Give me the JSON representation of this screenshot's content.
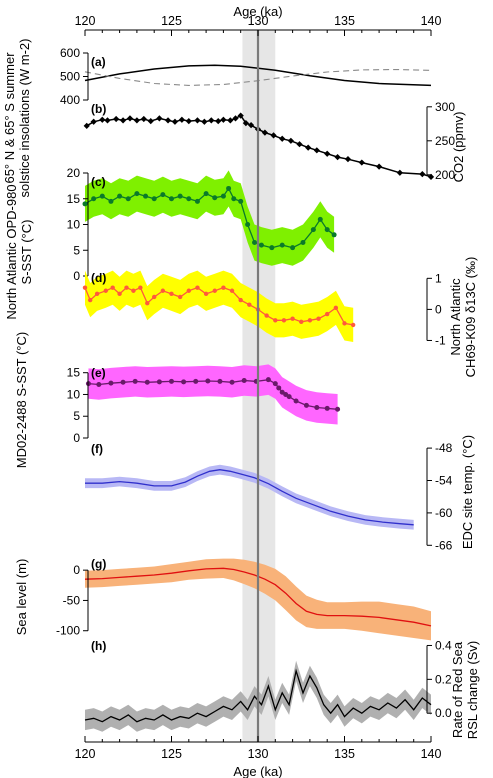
{
  "figure": {
    "x_axis_top_label": "Age (ka)",
    "x_axis_bottom_label": "Age (ka)",
    "shade_band": [
      129.1,
      131.0
    ],
    "vline_age": 130.0
  },
  "chart_data": [
    {
      "panel": "(a)",
      "type": "line",
      "left_ylabel": "65° N & 65° S summer solstice insolations (W m-2)",
      "left_ticks": [
        400,
        500,
        600
      ],
      "ylim": [
        400,
        600
      ],
      "series": [
        {
          "name": "",
          "color": "#000000",
          "dashed": false,
          "x": [
            120,
            122,
            124,
            126,
            127.5,
            129,
            131,
            133,
            135,
            137,
            140
          ],
          "y": [
            483,
            511,
            532,
            545,
            548,
            544,
            527,
            503,
            483,
            470,
            462
          ]
        },
        {
          "name": "",
          "color": "#8a8a8a",
          "dashed": true,
          "x": [
            120,
            122,
            124,
            126,
            128,
            130,
            132,
            134,
            136,
            138,
            140
          ],
          "y": [
            520,
            492,
            470,
            462,
            466,
            482,
            502,
            519,
            528,
            530,
            526
          ]
        }
      ]
    },
    {
      "panel": "(b)",
      "type": "line",
      "right_ylabel": "CO2 (ppmv)",
      "right_ticks": [
        200,
        250,
        300
      ],
      "ylim": [
        185,
        310
      ],
      "series": [
        {
          "name": "",
          "color": "#000000",
          "x": [
            120.1,
            120.5,
            121,
            121.3,
            121.8,
            122.2,
            122.6,
            123,
            123.4,
            123.8,
            124.3,
            124.8,
            125.2,
            125.6,
            126,
            126.5,
            126.9,
            127.3,
            127.7,
            128,
            128.4,
            128.7,
            129.0,
            129.3,
            129.6,
            130.0,
            130.4,
            130.9,
            131.4,
            131.9,
            132.4,
            132.9,
            133.4,
            134,
            134.6,
            135.2,
            136,
            137,
            138.2,
            139.5,
            140
          ],
          "y": [
            272,
            278,
            281,
            280,
            282,
            280,
            283,
            280,
            282,
            279,
            283,
            280,
            278,
            281,
            279,
            280,
            278,
            280,
            279,
            281,
            280,
            283,
            287,
            276,
            273,
            267,
            262,
            258,
            253,
            250,
            245,
            240,
            236,
            231,
            226,
            223,
            218,
            212,
            203,
            201,
            197
          ]
        }
      ]
    },
    {
      "panel": "(c)",
      "type": "area",
      "left_ylabel": "North Atlantic OPD-980 S-SST (°C)",
      "left_ticks": [
        0,
        5,
        10,
        15,
        20
      ],
      "ylim": [
        0,
        20
      ],
      "color": "#0a7a2a",
      "band_color": "#7ff000",
      "x": [
        120,
        120.5,
        121,
        121.5,
        122,
        122.5,
        123,
        123.5,
        124,
        124.5,
        125,
        125.5,
        126,
        126.5,
        127,
        127.5,
        128,
        128.3,
        128.6,
        129.0,
        129.4,
        129.8,
        130.2,
        130.8,
        131.4,
        132.0,
        132.6,
        133.2,
        133.6,
        134.0,
        134.4
      ],
      "y": [
        14,
        15,
        15.5,
        14.5,
        15.5,
        15,
        16,
        15.5,
        15,
        15.8,
        15,
        15.5,
        15,
        14.5,
        16,
        15.2,
        15.5,
        17,
        15,
        14.5,
        10,
        6.5,
        6,
        5.5,
        6,
        5.5,
        6.5,
        9,
        11,
        9,
        8
      ],
      "band_halfwidth": 3.5
    },
    {
      "panel": "(d)",
      "type": "area",
      "right_ylabel": "North Atlantic CH69-K09 δ13C (‰)",
      "right_ticks": [
        -1,
        0,
        1
      ],
      "ylim": [
        -1.5,
        1.3
      ],
      "color": "#ff5a3c",
      "band_color": "#ffff00",
      "x": [
        120,
        120.3,
        120.7,
        121.2,
        121.6,
        122.0,
        122.4,
        122.8,
        123.2,
        123.6,
        124,
        124.5,
        125,
        125.5,
        126,
        126.5,
        127,
        127.5,
        128,
        128.5,
        129,
        129.5,
        130,
        130.5,
        131,
        131.5,
        132,
        132.5,
        133,
        133.5,
        134,
        134.5,
        135,
        135.5
      ],
      "y": [
        0.7,
        0.3,
        0.5,
        0.6,
        0.7,
        0.5,
        0.7,
        0.6,
        0.7,
        0.2,
        0.4,
        0.6,
        0.5,
        0.4,
        0.6,
        0.7,
        0.5,
        0.6,
        0.7,
        0.6,
        0.3,
        0.15,
        0.0,
        -0.2,
        -0.35,
        -0.35,
        -0.3,
        -0.4,
        -0.35,
        -0.3,
        -0.15,
        0.05,
        -0.45,
        -0.5
      ],
      "band_halfwidth": 0.55
    },
    {
      "panel": "(e)",
      "type": "area",
      "left_ylabel": "MD02-2488 S-SST (°C)",
      "left_ticks": [
        0,
        5,
        10,
        15
      ],
      "ylim": [
        0,
        17
      ],
      "color": "#6a1a6a",
      "band_color": "#ff66ff",
      "x": [
        120.2,
        120.8,
        121.5,
        122.2,
        122.9,
        123.6,
        124.3,
        125,
        125.7,
        126.4,
        127.1,
        127.8,
        128.5,
        129.2,
        129.9,
        130.6,
        131.0,
        131.2,
        131.4,
        131.6,
        131.8,
        132.2,
        132.8,
        133.4,
        134,
        134.6
      ],
      "y": [
        12.5,
        12.3,
        12.6,
        12.8,
        13,
        12.8,
        12.9,
        13,
        12.9,
        13,
        13.1,
        13,
        12.8,
        13.2,
        13,
        13.4,
        12.5,
        11.5,
        10.5,
        10,
        9.5,
        8.5,
        7.5,
        7.0,
        6.8,
        6.6
      ],
      "band_halfwidth": 3.5
    },
    {
      "panel": "(f)",
      "type": "area",
      "right_ylabel": "EDC site temp. (°C)",
      "right_ticks": [
        -48,
        -54,
        -60,
        -66
      ],
      "ylim": [
        -66.5,
        -46.5
      ],
      "color": "#3030cc",
      "band_color": "#b8b8f5",
      "x": [
        120,
        121,
        122,
        123,
        124,
        125,
        125.8,
        126.5,
        127.2,
        127.8,
        128.4,
        129,
        129.8,
        130.6,
        131.4,
        132.2,
        133.2,
        134.2,
        135.2,
        136.2,
        137.2,
        138.2,
        139
      ],
      "y": [
        -54.5,
        -54.5,
        -54.2,
        -54.5,
        -55,
        -55,
        -54.3,
        -53.2,
        -52.3,
        -52.0,
        -52.3,
        -52.8,
        -53.5,
        -54.6,
        -56,
        -57.3,
        -58.5,
        -59.7,
        -60.6,
        -61.3,
        -61.7,
        -62,
        -62.2
      ],
      "band_halfwidth": 0.9
    },
    {
      "panel": "(g)",
      "type": "area",
      "left_ylabel": "Sea level (m)",
      "left_ticks": [
        -100,
        -50,
        0
      ],
      "ylim": [
        -112,
        25
      ],
      "color": "#e01010",
      "band_color": "#f8b279",
      "x": [
        120,
        121,
        122,
        123,
        124,
        125,
        126,
        127,
        128,
        128.6,
        129.2,
        129.8,
        130.4,
        131,
        131.6,
        132.2,
        132.8,
        133.4,
        134,
        135,
        136,
        137,
        138,
        139,
        140
      ],
      "y": [
        -15,
        -14,
        -12,
        -10,
        -8,
        -5,
        -1,
        2,
        3,
        1,
        -3,
        -8,
        -15,
        -24,
        -38,
        -55,
        -68,
        -73,
        -75,
        -75,
        -76,
        -78,
        -82,
        -86,
        -92
      ],
      "band_halfwidth": [
        14,
        14,
        14,
        14,
        14,
        15,
        15,
        16,
        16,
        18,
        20,
        22,
        24,
        26,
        28,
        28,
        26,
        24,
        22,
        22,
        24,
        26,
        26,
        26,
        24
      ]
    },
    {
      "panel": "(h)",
      "type": "area",
      "right_ylabel": "Rate of Red Sea RSL change (Sv)",
      "right_ticks": [
        0.0,
        0.2,
        0.4
      ],
      "ylim": [
        -0.17,
        0.45
      ],
      "color": "#000000",
      "band_color": "#b0b0b0",
      "x": [
        120,
        120.5,
        121,
        121.5,
        122,
        122.5,
        123,
        123.5,
        124,
        124.5,
        125,
        125.5,
        126,
        126.5,
        127,
        127.5,
        128,
        128.5,
        129,
        129.4,
        129.8,
        130.2,
        130.6,
        131,
        131.4,
        131.8,
        132.2,
        132.6,
        133,
        133.4,
        133.8,
        134.2,
        134.6,
        135,
        135.5,
        136,
        136.5,
        137,
        137.5,
        138,
        138.5,
        139,
        139.5,
        140
      ],
      "y": [
        -0.04,
        -0.03,
        -0.05,
        -0.02,
        -0.04,
        -0.01,
        -0.05,
        -0.03,
        -0.04,
        -0.01,
        -0.04,
        -0.02,
        -0.03,
        0.0,
        -0.02,
        0.01,
        0.04,
        0.02,
        0.07,
        0.02,
        0.1,
        0.05,
        0.16,
        0.02,
        0.12,
        0.05,
        0.25,
        0.12,
        0.22,
        0.15,
        0.05,
        0.0,
        0.05,
        -0.02,
        0.03,
        0.0,
        0.04,
        0.02,
        0.06,
        0.03,
        0.08,
        0.02,
        0.09,
        0.05
      ],
      "band_halfwidth": 0.06
    }
  ]
}
